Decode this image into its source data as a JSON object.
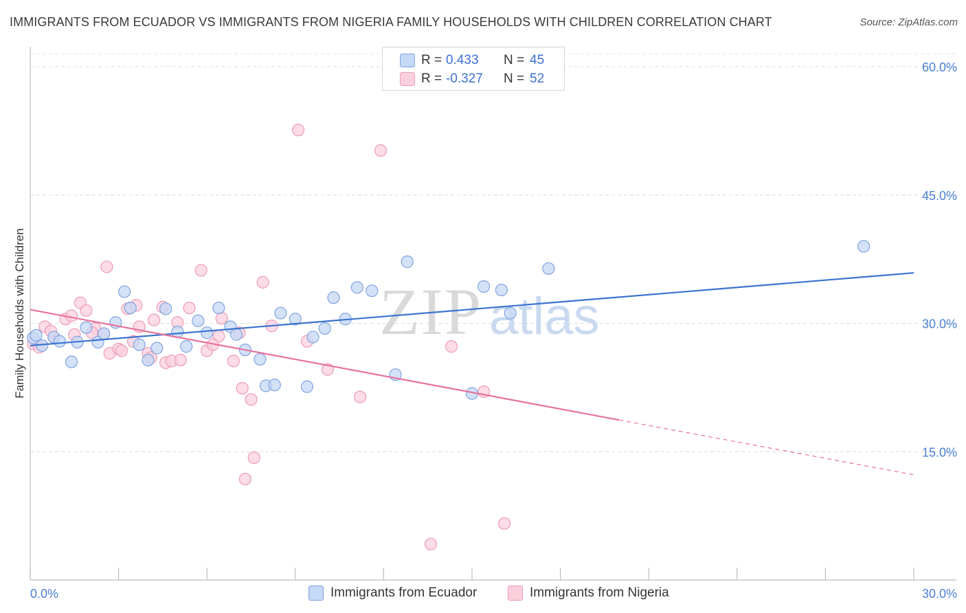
{
  "title": "IMMIGRANTS FROM ECUADOR VS IMMIGRANTS FROM NIGERIA FAMILY HOUSEHOLDS WITH CHILDREN CORRELATION CHART",
  "source": "Source: ZipAtlas.com",
  "watermark": {
    "zip": "ZIP",
    "atlas": "atlas"
  },
  "legend": {
    "rows": [
      {
        "r_label": "R =",
        "r_value": "0.433",
        "n_label": "N =",
        "n_value": "45",
        "color": "#b8d0f2"
      },
      {
        "r_label": "R =",
        "r_value": "-0.327",
        "n_label": "N =",
        "n_value": "52",
        "color": "#f8c3d3"
      }
    ]
  },
  "bottom_legend": {
    "ecuador": "Immigrants from Ecuador",
    "nigeria": "Immigrants from Nigeria"
  },
  "chart_data": {
    "type": "scatter",
    "title": "IMMIGRANTS FROM ECUADOR VS IMMIGRANTS FROM NIGERIA FAMILY HOUSEHOLDS WITH CHILDREN CORRELATION CHART",
    "xlabel": "",
    "ylabel": "Family Households with Children",
    "xlim": [
      0,
      30
    ],
    "ylim": [
      0,
      60
    ],
    "x_tick_labels": [
      "0.0%",
      "30.0%"
    ],
    "y_tick_labels": [
      "15.0%",
      "30.0%",
      "45.0%",
      "60.0%"
    ],
    "y_ticks": [
      15,
      30,
      45,
      60
    ],
    "grid": true,
    "colors": {
      "ecuador": "#3b73d1",
      "nigeria": "#e8719a",
      "ecuador_fill": "#c5d8f5",
      "nigeria_fill": "#fbd0dd"
    },
    "series": [
      {
        "name": "Immigrants from Ecuador",
        "color": "#3b73d1",
        "points": [
          [
            0.1,
            28.3
          ],
          [
            0.4,
            27.4
          ],
          [
            0.8,
            28.4
          ],
          [
            1.0,
            27.9
          ],
          [
            1.4,
            25.5
          ],
          [
            1.6,
            27.8
          ],
          [
            1.9,
            29.5
          ],
          [
            2.3,
            27.8
          ],
          [
            2.5,
            28.8
          ],
          [
            2.9,
            30.1
          ],
          [
            3.2,
            33.7
          ],
          [
            3.4,
            31.8
          ],
          [
            3.7,
            27.5
          ],
          [
            4.0,
            25.7
          ],
          [
            4.3,
            27.1
          ],
          [
            4.6,
            31.7
          ],
          [
            5.0,
            29.0
          ],
          [
            5.3,
            27.3
          ],
          [
            5.7,
            30.3
          ],
          [
            6.0,
            28.9
          ],
          [
            6.4,
            31.8
          ],
          [
            6.8,
            29.6
          ],
          [
            7.0,
            28.7
          ],
          [
            7.3,
            26.9
          ],
          [
            7.8,
            25.8
          ],
          [
            8.0,
            22.7
          ],
          [
            8.3,
            22.8
          ],
          [
            8.5,
            31.2
          ],
          [
            9.0,
            30.5
          ],
          [
            9.4,
            22.6
          ],
          [
            9.6,
            28.4
          ],
          [
            10.0,
            29.4
          ],
          [
            10.3,
            33.0
          ],
          [
            10.7,
            30.5
          ],
          [
            11.1,
            34.2
          ],
          [
            11.6,
            33.8
          ],
          [
            12.4,
            24.0
          ],
          [
            12.8,
            37.2
          ],
          [
            15.0,
            21.8
          ],
          [
            15.4,
            34.3
          ],
          [
            16.0,
            33.9
          ],
          [
            16.3,
            31.2
          ],
          [
            17.6,
            36.4
          ],
          [
            28.3,
            39.0
          ],
          [
            0.2,
            28.6
          ]
        ],
        "trend": {
          "x": [
            0,
            30
          ],
          "y": [
            27.4,
            35.9
          ]
        }
      },
      {
        "name": "Immigrants from Nigeria",
        "color": "#e8719a",
        "points": [
          [
            0.1,
            27.6
          ],
          [
            0.5,
            29.6
          ],
          [
            0.8,
            28.4
          ],
          [
            1.2,
            30.5
          ],
          [
            1.5,
            28.7
          ],
          [
            1.7,
            32.4
          ],
          [
            1.9,
            31.5
          ],
          [
            2.2,
            29.4
          ],
          [
            2.5,
            28.8
          ],
          [
            2.6,
            36.6
          ],
          [
            2.7,
            26.5
          ],
          [
            3.0,
            27.0
          ],
          [
            3.1,
            26.8
          ],
          [
            3.3,
            31.7
          ],
          [
            3.6,
            32.1
          ],
          [
            3.7,
            29.6
          ],
          [
            4.0,
            26.5
          ],
          [
            4.2,
            30.4
          ],
          [
            4.5,
            31.9
          ],
          [
            4.6,
            25.4
          ],
          [
            4.8,
            25.6
          ],
          [
            5.0,
            30.1
          ],
          [
            5.1,
            25.7
          ],
          [
            5.4,
            31.8
          ],
          [
            5.8,
            36.2
          ],
          [
            6.0,
            26.8
          ],
          [
            6.4,
            28.5
          ],
          [
            6.5,
            30.6
          ],
          [
            6.9,
            25.6
          ],
          [
            7.1,
            28.9
          ],
          [
            7.2,
            22.4
          ],
          [
            7.5,
            21.1
          ],
          [
            7.6,
            14.3
          ],
          [
            7.3,
            11.8
          ],
          [
            7.9,
            34.8
          ],
          [
            8.2,
            29.7
          ],
          [
            9.1,
            52.6
          ],
          [
            9.4,
            27.9
          ],
          [
            10.1,
            24.6
          ],
          [
            11.2,
            21.4
          ],
          [
            11.9,
            50.2
          ],
          [
            13.6,
            4.2
          ],
          [
            14.3,
            27.3
          ],
          [
            15.4,
            22.0
          ],
          [
            16.1,
            6.6
          ],
          [
            1.4,
            30.9
          ],
          [
            2.1,
            28.9
          ],
          [
            0.3,
            27.2
          ],
          [
            4.1,
            26.0
          ],
          [
            6.2,
            27.5
          ],
          [
            3.5,
            27.9
          ],
          [
            0.7,
            29.1
          ]
        ],
        "trend": {
          "x": [
            0,
            20
          ],
          "y": [
            31.6,
            18.7
          ]
        },
        "trend_dashed": {
          "x": [
            20,
            30
          ],
          "y": [
            18.7,
            12.3
          ]
        }
      }
    ]
  }
}
